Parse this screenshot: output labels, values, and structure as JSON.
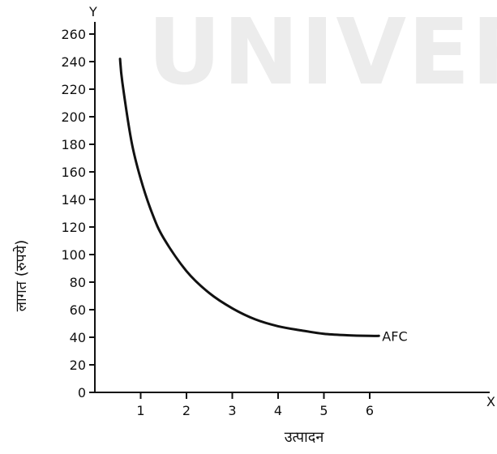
{
  "watermark": "UNIVERS",
  "chart_data": {
    "type": "line",
    "title": "",
    "xlabel": "उत्पादन",
    "ylabel": "लागत (रुपये)",
    "x_axis_letter": "X",
    "y_axis_letter": "Y",
    "xlim": [
      0,
      7.5
    ],
    "ylim": [
      0,
      260
    ],
    "x_ticks": [
      1,
      2,
      3,
      4,
      5,
      6
    ],
    "y_ticks": [
      0,
      20,
      40,
      60,
      80,
      100,
      120,
      140,
      160,
      180,
      200,
      220,
      240,
      260
    ],
    "grid": false,
    "series": [
      {
        "name": "AFC",
        "color": "#111111",
        "x": [
          0.55,
          0.6,
          0.8,
          1.0,
          1.25,
          1.5,
          2.0,
          2.5,
          3.0,
          3.5,
          4.0,
          4.5,
          5.0,
          5.5,
          6.0,
          6.2
        ],
        "y": [
          242,
          225,
          182,
          155,
          130,
          112,
          88,
          72,
          61,
          53,
          48,
          45,
          42.5,
          41.5,
          41,
          41
        ]
      }
    ]
  }
}
